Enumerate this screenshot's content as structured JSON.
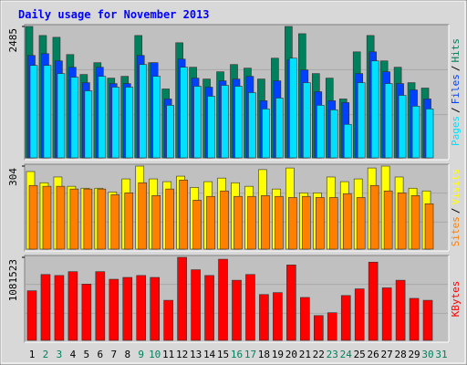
{
  "chart_data": [
    {
      "type": "bar",
      "title": "Daily usage for November 2013",
      "legend_separator": "/",
      "ylim": [
        0,
        2485
      ],
      "yticks": [
        2485
      ],
      "series": [
        {
          "name": "Hits",
          "color": "#00805c",
          "values": [
            2485,
            2314,
            2280,
            1954,
            1577,
            1800,
            1508,
            1542,
            2314,
            1800,
            1303,
            2177,
            1714,
            1491,
            1628,
            1765,
            1697,
            1491,
            1885,
            2485,
            2348,
            1594,
            1508,
            1114,
            2005,
            2314,
            1834,
            1714,
            1422,
            1320,
            null
          ]
        },
        {
          "name": "Files",
          "color": "#0040ff",
          "values": [
            1937,
            1971,
            1834,
            1714,
            1422,
            1714,
            1405,
            1405,
            1937,
            1800,
            1114,
            1868,
            1508,
            1337,
            1457,
            1491,
            1542,
            1080,
            1457,
            1851,
            1663,
            1251,
            1080,
            1045,
            1594,
            2005,
            1628,
            1405,
            1285,
            1114,
            null
          ]
        },
        {
          "name": "Pages",
          "color": "#00e0ff",
          "values": [
            1748,
            1748,
            1594,
            1525,
            1268,
            1542,
            1337,
            1337,
            1765,
            1542,
            994,
            1714,
            1354,
            1165,
            1371,
            1354,
            1234,
            925,
            1131,
            1885,
            1422,
            994,
            908,
            634,
            1422,
            1834,
            1405,
            1182,
            977,
            925,
            null
          ]
        }
      ]
    },
    {
      "type": "bar",
      "legend_separator": "/",
      "ylim": [
        0,
        304
      ],
      "yticks": [
        304
      ],
      "series": [
        {
          "name": "Visits",
          "color": "#ffff00",
          "values": [
            284,
            243,
            264,
            230,
            223,
            223,
            209,
            257,
            304,
            257,
            247,
            267,
            226,
            247,
            260,
            243,
            230,
            291,
            220,
            297,
            206,
            206,
            264,
            247,
            257,
            297,
            304,
            264,
            223,
            213,
            null
          ]
        },
        {
          "name": "Sites",
          "color": "#ff8000",
          "values": [
            233,
            230,
            230,
            220,
            220,
            220,
            199,
            206,
            243,
            196,
            220,
            253,
            179,
            193,
            213,
            193,
            193,
            196,
            193,
            189,
            193,
            189,
            189,
            203,
            189,
            233,
            213,
            206,
            196,
            166,
            null
          ]
        }
      ]
    },
    {
      "type": "bar",
      "ylim": [
        0,
        1081523
      ],
      "yticks": [
        1081523
      ],
      "categories": [
        "1",
        "2",
        "3",
        "4",
        "5",
        "6",
        "7",
        "8",
        "9",
        "10",
        "11",
        "12",
        "13",
        "14",
        "15",
        "16",
        "17",
        "18",
        "19",
        "20",
        "21",
        "22",
        "23",
        "24",
        "25",
        "26",
        "27",
        "28",
        "29",
        "30",
        "31"
      ],
      "category_colors": [
        "#000000",
        "#00805c",
        "#00805c",
        "#000000",
        "#000000",
        "#000000",
        "#000000",
        "#000000",
        "#00805c",
        "#00805c",
        "#000000",
        "#000000",
        "#000000",
        "#000000",
        "#000000",
        "#00805c",
        "#00805c",
        "#000000",
        "#000000",
        "#000000",
        "#000000",
        "#000000",
        "#00805c",
        "#00805c",
        "#000000",
        "#000000",
        "#000000",
        "#000000",
        "#000000",
        "#00805c",
        "#00805c"
      ],
      "series": [
        {
          "name": "KBytes",
          "color": "#ff0000",
          "values": [
            646000,
            858000,
            845000,
            895000,
            733000,
            895000,
            796000,
            820000,
            845000,
            820000,
            522000,
            1081523,
            920000,
            845000,
            1057000,
            783000,
            858000,
            597000,
            622000,
            982000,
            559000,
            323000,
            360000,
            584000,
            671000,
            1019000,
            684000,
            783000,
            547000,
            522000,
            null
          ]
        }
      ]
    }
  ]
}
